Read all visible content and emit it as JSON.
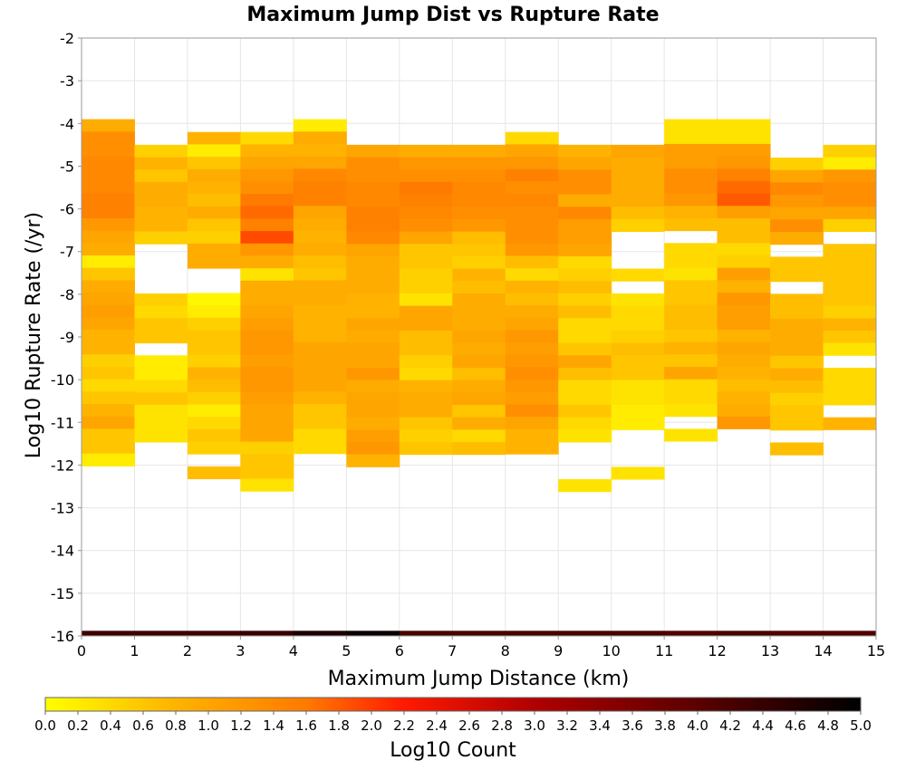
{
  "chart_data": {
    "type": "heatmap",
    "title": "Maximum Jump Dist vs Rupture Rate",
    "xlabel": "Maximum Jump Distance (km)",
    "ylabel": "Log10 Rupture Rate (/yr)",
    "xlim": [
      0,
      15
    ],
    "ylim": [
      -16,
      -2
    ],
    "x_ticks": [
      "0",
      "1",
      "2",
      "3",
      "4",
      "5",
      "6",
      "7",
      "8",
      "9",
      "10",
      "11",
      "12",
      "13",
      "14",
      "15"
    ],
    "y_ticks": [
      "-2",
      "-3",
      "-4",
      "-5",
      "-6",
      "-7",
      "-8",
      "-9",
      "-10",
      "-11",
      "-12",
      "-13",
      "-14",
      "-15",
      "-16"
    ],
    "grid": true,
    "x_bin_width": 1,
    "y_bin_height": 0.29,
    "colorbar": {
      "label": "Log10 Count",
      "range": [
        0,
        5
      ],
      "ticks": [
        "0.0",
        "0.2",
        "0.4",
        "0.6",
        "0.8",
        "1.0",
        "1.2",
        "1.4",
        "1.6",
        "1.8",
        "2.0",
        "2.2",
        "2.4",
        "2.6",
        "2.8",
        "3.0",
        "3.2",
        "3.4",
        "3.6",
        "3.8",
        "4.0",
        "4.2",
        "4.4",
        "4.6",
        "4.8",
        "5.0"
      ],
      "stops": [
        {
          "v": 0.0,
          "color": "#ffff00"
        },
        {
          "v": 0.8,
          "color": "#ffb300"
        },
        {
          "v": 1.6,
          "color": "#ff7a00"
        },
        {
          "v": 2.2,
          "color": "#ff1a00"
        },
        {
          "v": 3.0,
          "color": "#b00000"
        },
        {
          "v": 4.0,
          "color": "#5a0000"
        },
        {
          "v": 5.0,
          "color": "#000000"
        }
      ]
    },
    "columns": [
      {
        "x": 0,
        "y_top": -3.9,
        "values": [
          0.9,
          1.3,
          1.3,
          1.4,
          1.4,
          1.4,
          1.5,
          1.5,
          1.2,
          1.0,
          0.9,
          0.2,
          0.6,
          0.9,
          1.0,
          1.1,
          1.0,
          0.8,
          0.8,
          0.5,
          0.6,
          0.4,
          0.6,
          0.8,
          1.0,
          0.6,
          0.6,
          0.2
        ]
      },
      {
        "x": 1,
        "y_top": -4.5,
        "values": [
          0.5,
          0.8,
          0.6,
          0.9,
          0.9,
          0.8,
          0.8,
          0.5,
          null,
          null,
          null,
          null,
          0.5,
          0.4,
          0.6,
          0.6,
          null,
          0.2,
          0.2,
          0.4,
          0.6,
          0.3,
          0.3,
          0.3
        ]
      },
      {
        "x": 2,
        "y_top": -4.2,
        "values": [
          0.8,
          0.2,
          0.6,
          0.9,
          0.8,
          0.7,
          0.9,
          0.6,
          0.5,
          0.9,
          0.9,
          null,
          null,
          0.1,
          0.2,
          0.5,
          0.6,
          0.6,
          0.5,
          0.8,
          0.7,
          0.5,
          0.2,
          0.4,
          0.6,
          0.5,
          null,
          0.7
        ]
      },
      {
        "x": 3,
        "y_top": -4.2,
        "values": [
          0.4,
          0.8,
          1.0,
          1.2,
          1.3,
          1.6,
          1.7,
          1.5,
          1.9,
          1.2,
          0.9,
          0.3,
          0.9,
          0.9,
          1.0,
          1.1,
          1.2,
          1.2,
          1.1,
          1.2,
          1.2,
          1.1,
          1.0,
          1.0,
          1.0,
          0.5,
          0.6,
          0.6,
          0.3
        ]
      },
      {
        "x": 4,
        "y_top": -3.9,
        "values": [
          0.2,
          0.9,
          0.8,
          1.0,
          1.4,
          1.5,
          1.5,
          1.0,
          0.9,
          0.8,
          0.9,
          0.7,
          0.6,
          0.9,
          0.9,
          0.8,
          0.8,
          0.8,
          1.0,
          1.0,
          1.0,
          1.0,
          0.8,
          0.6,
          0.6,
          0.4,
          0.4
        ]
      },
      {
        "x": 5,
        "y_top": -4.5,
        "values": [
          1.0,
          1.3,
          1.3,
          1.4,
          1.4,
          1.5,
          1.5,
          1.4,
          1.0,
          0.9,
          0.9,
          0.9,
          0.8,
          0.8,
          1.0,
          0.9,
          1.0,
          1.0,
          1.2,
          0.9,
          1.0,
          1.0,
          0.9,
          1.1,
          1.2,
          0.8
        ]
      },
      {
        "x": 6,
        "y_top": -4.5,
        "values": [
          0.9,
          1.2,
          1.3,
          1.6,
          1.5,
          1.4,
          1.3,
          1.0,
          0.6,
          0.6,
          0.5,
          0.5,
          0.3,
          1.0,
          1.0,
          0.7,
          0.7,
          0.5,
          0.4,
          0.8,
          0.9,
          0.9,
          0.6,
          0.5,
          0.6
        ]
      },
      {
        "x": 7,
        "y_top": -4.5,
        "values": [
          0.9,
          1.2,
          1.3,
          1.4,
          1.4,
          1.3,
          1.2,
          0.7,
          0.6,
          0.5,
          0.8,
          0.7,
          0.9,
          0.9,
          0.9,
          1.0,
          0.9,
          1.0,
          0.7,
          0.9,
          1.0,
          0.6,
          0.9,
          0.4,
          0.7
        ]
      },
      {
        "x": 8,
        "y_top": -4.2,
        "values": [
          0.4,
          1.0,
          1.2,
          1.5,
          1.3,
          1.4,
          1.3,
          1.3,
          1.3,
          1.2,
          0.7,
          0.4,
          0.8,
          0.7,
          0.9,
          1.0,
          1.2,
          1.1,
          1.2,
          1.3,
          1.2,
          1.1,
          1.3,
          1.0,
          0.8,
          0.8
        ]
      },
      {
        "x": 9,
        "y_top": -4.5,
        "values": [
          0.8,
          1.0,
          1.3,
          1.3,
          0.9,
          1.4,
          1.1,
          1.1,
          1.0,
          0.4,
          0.5,
          0.7,
          0.5,
          0.7,
          0.4,
          0.4,
          0.6,
          1.0,
          0.7,
          0.4,
          0.4,
          0.6,
          0.4,
          0.3,
          null,
          null,
          null,
          0.3
        ]
      },
      {
        "x": 10,
        "y_top": -4.5,
        "values": [
          1.0,
          0.9,
          0.9,
          0.9,
          0.9,
          0.7,
          0.5,
          null,
          null,
          null,
          0.4,
          null,
          0.3,
          0.4,
          0.4,
          0.5,
          0.7,
          0.6,
          0.6,
          0.3,
          0.3,
          0.2,
          0.2,
          null,
          null,
          null,
          0.3
        ]
      },
      {
        "x": 11,
        "y_top": -3.9,
        "values": [
          0.3,
          0.3,
          1.1,
          1.1,
          1.3,
          1.3,
          1.2,
          0.8,
          0.7,
          null,
          0.4,
          0.4,
          0.3,
          0.6,
          0.6,
          0.7,
          0.7,
          0.6,
          0.8,
          0.6,
          1.0,
          0.4,
          0.4,
          0.3,
          null,
          0.3
        ]
      },
      {
        "x": 12,
        "y_top": -3.9,
        "values": [
          0.3,
          0.3,
          1.1,
          1.2,
          1.5,
          1.7,
          1.8,
          1.1,
          0.7,
          0.7,
          0.4,
          0.5,
          1.1,
          0.8,
          1.2,
          1.1,
          1.1,
          0.8,
          1.0,
          0.9,
          0.8,
          0.7,
          0.8,
          0.9,
          1.2
        ]
      },
      {
        "x": 13,
        "y_top": -4.8,
        "values": [
          0.5,
          1.0,
          1.4,
          1.2,
          1.0,
          1.3,
          0.9,
          null,
          0.6,
          0.6,
          null,
          0.7,
          0.7,
          0.9,
          0.9,
          0.9,
          0.6,
          0.9,
          0.7,
          0.5,
          0.6,
          0.6,
          null,
          0.7
        ]
      },
      {
        "x": 14,
        "y_top": -4.5,
        "values": [
          0.5,
          0.2,
          1.2,
          1.3,
          1.3,
          1.0,
          0.5,
          null,
          0.6,
          0.6,
          0.6,
          0.6,
          0.6,
          0.5,
          0.8,
          0.6,
          0.3,
          null,
          0.4,
          0.4,
          0.4,
          null,
          0.8
        ]
      }
    ],
    "bottom_row": {
      "y_top": -15.88,
      "y_bottom": -16.0,
      "values": [
        4.3,
        4.3,
        4.3,
        4.4,
        4.7,
        4.9,
        4.2,
        4.2,
        4.2,
        4.2,
        4.2,
        4.1,
        4.2,
        4.1,
        4.1
      ]
    }
  }
}
